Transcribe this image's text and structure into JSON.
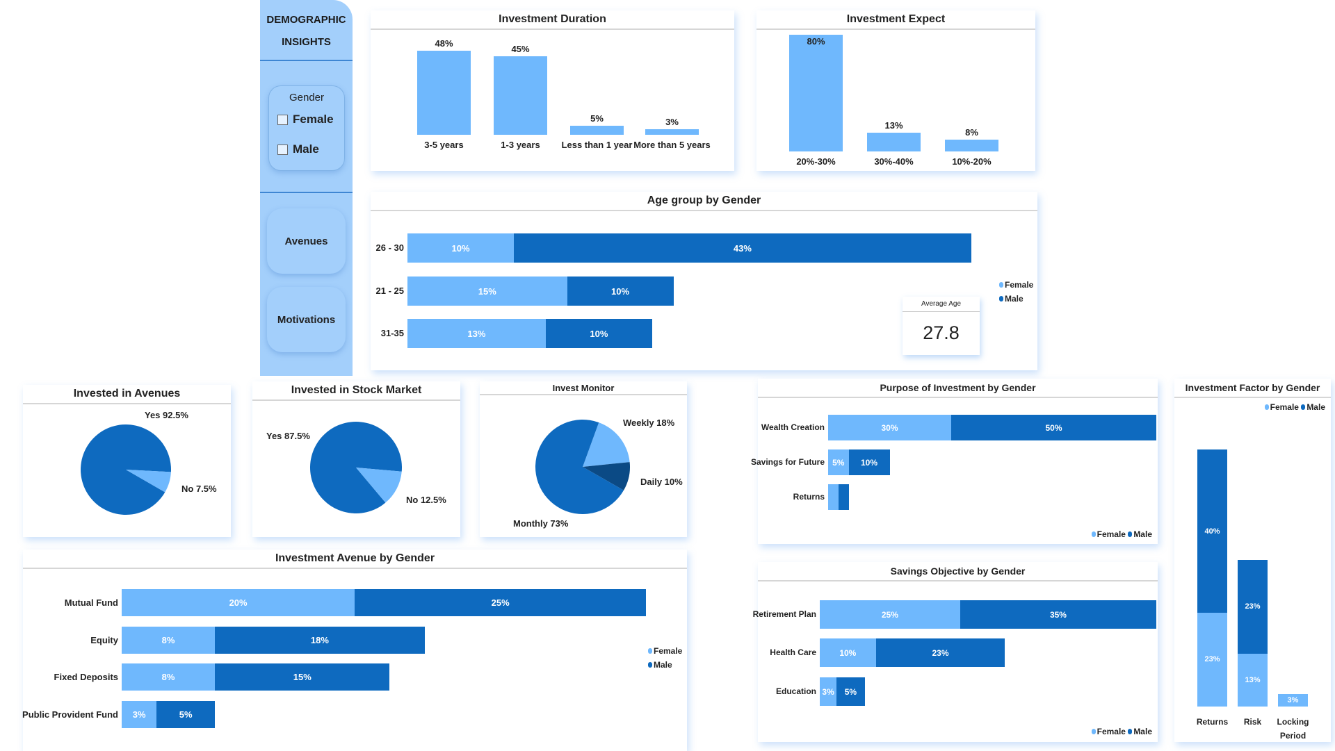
{
  "colors": {
    "female": "#6fb8fd",
    "male": "#0e6abf",
    "dark": "#0b4a85",
    "sidebar": "#a3cffb"
  },
  "sidebar": {
    "title_line1": "DEMOGRAPHIC",
    "title_line2": "INSIGHTS",
    "gender_label": "Gender",
    "options": [
      {
        "label": "Female",
        "checked": false
      },
      {
        "label": "Male",
        "checked": false
      }
    ],
    "buttons": [
      "Avenues",
      "Motivations"
    ]
  },
  "legend": {
    "female": "Female",
    "male": "Male"
  },
  "investment_duration": {
    "title": "Investment Duration",
    "categories": [
      "3-5 years",
      "1-3 years",
      "Less than 1 year",
      "More than 5 years"
    ],
    "values": [
      48,
      45,
      5,
      3
    ],
    "labels": [
      "48%",
      "45%",
      "5%",
      "3%"
    ]
  },
  "investment_expect": {
    "title": "Investment Expect",
    "categories": [
      "20%-30%",
      "30%-40%",
      "10%-20%"
    ],
    "values": [
      80,
      13,
      8
    ],
    "labels": [
      "80%",
      "13%",
      "8%"
    ]
  },
  "age_group": {
    "title": "Age group by Gender",
    "categories": [
      "26 - 30",
      "21 - 25",
      "31-35"
    ],
    "female": [
      10,
      15,
      13
    ],
    "male": [
      43,
      10,
      10
    ],
    "female_labels": [
      "10%",
      "15%",
      "13%"
    ],
    "male_labels": [
      "43%",
      "10%",
      "10%"
    ]
  },
  "average_age": {
    "label": "Average Age",
    "value": "27.8"
  },
  "invested_avenues": {
    "title": "Invested in Avenues",
    "slices": [
      {
        "label": "Yes 92.5%",
        "value": 92.5
      },
      {
        "label": "No 7.5%",
        "value": 7.5
      }
    ]
  },
  "invested_stock": {
    "title": "Invested in Stock Market",
    "slices": [
      {
        "label": "Yes 87.5%",
        "value": 87.5
      },
      {
        "label": "No 12.5%",
        "value": 12.5
      }
    ]
  },
  "invest_monitor": {
    "title": "Invest Monitor",
    "slices": [
      {
        "label": "Weekly 18%",
        "value": 18
      },
      {
        "label": "Daily 10%",
        "value": 10
      },
      {
        "label": "Monthly 73%",
        "value": 73
      }
    ]
  },
  "avenue_by_gender": {
    "title": "Investment Avenue by Gender",
    "categories": [
      "Mutual Fund",
      "Equity",
      "Fixed Deposits",
      "Public Provident Fund"
    ],
    "female": [
      20,
      8,
      8,
      3
    ],
    "male": [
      25,
      18,
      15,
      5
    ],
    "female_labels": [
      "20%",
      "8%",
      "8%",
      "3%"
    ],
    "male_labels": [
      "25%",
      "18%",
      "15%",
      "5%"
    ]
  },
  "purpose_by_gender": {
    "title": "Purpose of Investment by Gender",
    "categories": [
      "Wealth Creation",
      "Savings for Future",
      "Returns"
    ],
    "female": [
      30,
      5,
      2.5
    ],
    "male": [
      50,
      10,
      2.5
    ],
    "female_labels": [
      "30%",
      "5%",
      ""
    ],
    "male_labels": [
      "50%",
      "10%",
      ""
    ]
  },
  "savings_by_gender": {
    "title": "Savings Objective by Gender",
    "categories": [
      "Retirement Plan",
      "Health Care",
      "Education"
    ],
    "female": [
      25,
      10,
      3
    ],
    "male": [
      35,
      23,
      5
    ],
    "female_labels": [
      "25%",
      "10%",
      "3%"
    ],
    "male_labels": [
      "35%",
      "23%",
      "5%"
    ]
  },
  "factor_by_gender": {
    "title": "Investment Factor by Gender",
    "categories": [
      "Returns",
      "Risk",
      "Locking Period"
    ],
    "female": [
      23,
      13,
      3
    ],
    "male": [
      40,
      23,
      0
    ],
    "female_labels": [
      "23%",
      "13%",
      "3%"
    ],
    "male_labels": [
      "40%",
      "23%",
      ""
    ]
  }
}
